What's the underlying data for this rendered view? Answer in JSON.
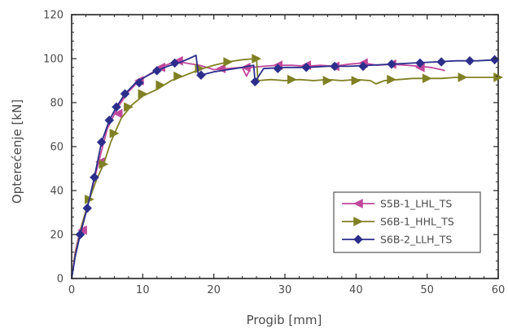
{
  "chart_data": {
    "type": "line",
    "xlabel": "Progib [mm]",
    "ylabel": "Opterećenje [kN]",
    "xlim": [
      0,
      60
    ],
    "ylim": [
      0,
      120
    ],
    "xticks": [
      0,
      10,
      20,
      30,
      40,
      50,
      60
    ],
    "yticks": [
      0,
      20,
      40,
      60,
      80,
      100,
      120
    ],
    "grid": false,
    "legend_position": "lower-right",
    "series": [
      {
        "name": "S5B-1_LHL_TS",
        "color": "#c0489c",
        "marker": "triangle-left",
        "x": [
          0,
          0.5,
          1.2,
          2.5,
          3.8,
          5.0,
          6.5,
          8.0,
          9.5,
          11.0,
          12.5,
          14.0,
          15.0,
          16.0,
          18.0,
          20.0,
          22.0,
          24.0,
          24.6,
          25.2,
          27.0,
          29.0,
          31.0,
          33.0,
          35.0,
          37.0,
          39.0,
          41.0,
          43.0,
          45.0,
          47.0,
          49.0,
          50.5,
          52.0,
          52.5
        ],
        "y": [
          0,
          12,
          22,
          36,
          53,
          68,
          78,
          85,
          90,
          93,
          96,
          98,
          99,
          98,
          97,
          95,
          95.5,
          96,
          92,
          96,
          96.5,
          97,
          97,
          96.5,
          97,
          96.5,
          97.5,
          98,
          97,
          97.5,
          97,
          96.5,
          96,
          95,
          94.5
        ],
        "markers_x": [
          1.5,
          4,
          6.5,
          9.5,
          12.5,
          15,
          21,
          24.5,
          29,
          33,
          37,
          41,
          45,
          49
        ],
        "markers_y": [
          22,
          53,
          75,
          90,
          96,
          99,
          95.5,
          96,
          97,
          97,
          96.5,
          98,
          97.5,
          96
        ]
      },
      {
        "name": "S6B-1_HHL_TS",
        "color": "#808024",
        "marker": "triangle-right",
        "x": [
          0,
          0.5,
          1.5,
          2.5,
          3.5,
          4.5,
          5.5,
          7.0,
          8.5,
          10.0,
          12.0,
          14.0,
          16.0,
          18.0,
          20.0,
          22.0,
          24.0,
          26.0,
          26.2,
          28.0,
          30.0,
          32.0,
          34.0,
          36.0,
          38.0,
          40.0,
          42.0,
          42.8,
          44.0,
          46.0,
          48.0,
          50.0,
          52.0,
          54.0,
          56.0,
          58.0,
          60.0
        ],
        "y": [
          0,
          11,
          25,
          36,
          45,
          52,
          62,
          73,
          79,
          83,
          86,
          90,
          92.5,
          95,
          97,
          98.5,
          99.5,
          100,
          90,
          90.5,
          90,
          90.5,
          90,
          90.5,
          90,
          90.5,
          90,
          88.5,
          90,
          90.5,
          91,
          91,
          91,
          91.5,
          91.5,
          91.5,
          91.5
        ],
        "markers_x": [
          2.5,
          4.5,
          6,
          8,
          10,
          12.5,
          15,
          18,
          22,
          26,
          31,
          36,
          40,
          45,
          50,
          55,
          60
        ],
        "markers_y": [
          36,
          52,
          66,
          78,
          84,
          88,
          92,
          95.5,
          98.5,
          100,
          90.5,
          90,
          90,
          90.5,
          91,
          91.5,
          91.5
        ]
      },
      {
        "name": "S6B-2_LLH_TS",
        "color": "#2c2e8c",
        "marker": "diamond",
        "x": [
          0,
          0.5,
          1.2,
          2.2,
          3.2,
          4.2,
          5.3,
          6.3,
          7.5,
          9.0,
          10.5,
          12.0,
          13.5,
          15.0,
          16.5,
          17.5,
          17.8,
          18.2,
          20.0,
          22.0,
          24.0,
          25.6,
          25.8,
          27.0,
          30.0,
          33.0,
          36.0,
          39.0,
          42.0,
          45.0,
          48.0,
          51.0,
          54.0,
          57.0,
          60.0
        ],
        "y": [
          0,
          10,
          20,
          32,
          46,
          62,
          72,
          78,
          84,
          89,
          92,
          94.5,
          96.5,
          98,
          100,
          101.5,
          93,
          92.5,
          94,
          95,
          96,
          97,
          89.5,
          95.5,
          96,
          96,
          96.5,
          96.5,
          97,
          97.5,
          98,
          98.5,
          99,
          99,
          99.5
        ],
        "markers_x": [
          1.2,
          2.2,
          3.2,
          4.2,
          5.3,
          6.3,
          7.5,
          9.5,
          12,
          14.5,
          18.2,
          25.8,
          29,
          33,
          37,
          41,
          45,
          49,
          52,
          56,
          59.5
        ],
        "markers_y": [
          20,
          32,
          46,
          62,
          72,
          78,
          84,
          89,
          94.5,
          98,
          92.5,
          89.5,
          95.5,
          96,
          96.5,
          96.5,
          97.5,
          98,
          98.5,
          99,
          99.5
        ]
      }
    ]
  }
}
